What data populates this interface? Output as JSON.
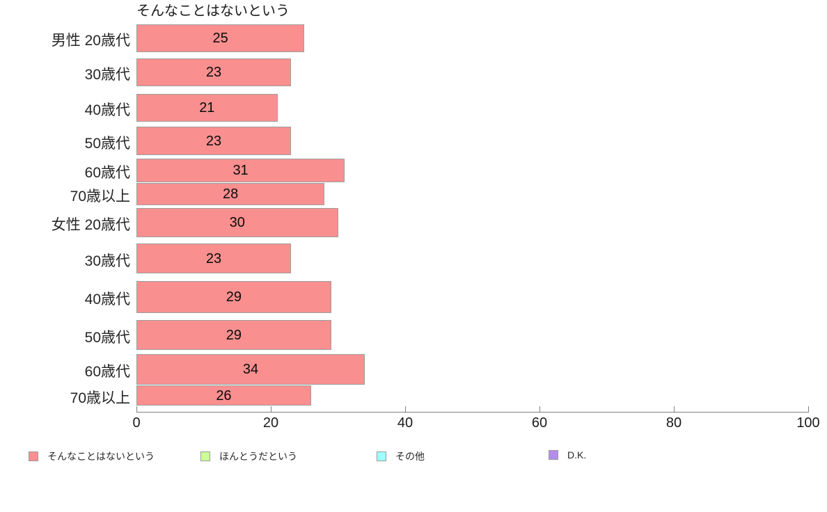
{
  "chart_data": {
    "type": "bar",
    "orientation": "horizontal",
    "title": "そんなことはないという",
    "categories": [
      "男性 20歳代",
      "30歳代",
      "40歳代",
      "50歳代",
      "60歳代",
      "70歳以上",
      "女性 20歳代",
      "30歳代",
      "40歳代",
      "50歳代",
      "60歳代",
      "70歳以上"
    ],
    "values": [
      25,
      23,
      21,
      23,
      31,
      28,
      30,
      23,
      29,
      29,
      34,
      26
    ],
    "xlabel": "",
    "ylabel": "",
    "xlim": [
      0,
      100
    ],
    "x_ticks": [
      0,
      20,
      40,
      60,
      80,
      100
    ],
    "grid": false,
    "value_labels_shown": true,
    "legend_position": "bottom",
    "legend": [
      {
        "label": "そんなことはないという",
        "color": "#F98F8F"
      },
      {
        "label": "ほんとうだという",
        "color": "#CCFF99"
      },
      {
        "label": "その他",
        "color": "#A0FFFF"
      },
      {
        "label": "D.K.",
        "color": "#B68CEB"
      }
    ],
    "colors": {
      "bar_fill": "#F98F8F",
      "bar_border": "#9E9E9E",
      "axis_line": "#808080",
      "text": "#1a1a1a",
      "background": "#ffffff"
    }
  }
}
